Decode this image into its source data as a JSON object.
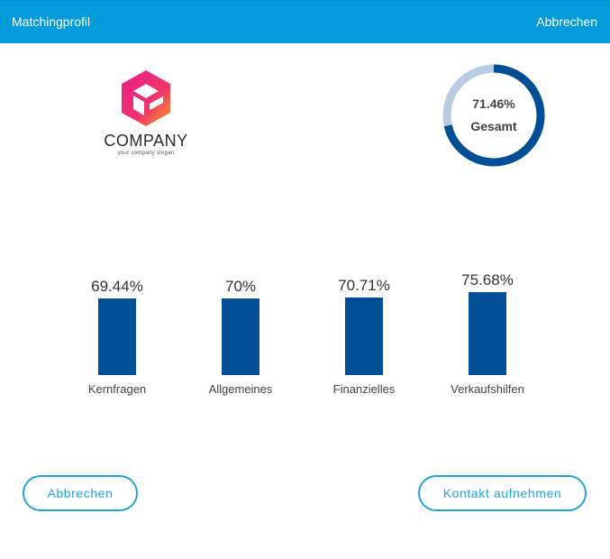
{
  "header": {
    "title": "Matchingprofil",
    "cancel_label": "Abbrechen"
  },
  "logo": {
    "name": "COMPANY",
    "slogan": "your company slogan",
    "icon": "hexagon-cube-logo"
  },
  "overall": {
    "value": 71.46,
    "value_text": "71.46%",
    "label": "Gesamt",
    "colors": {
      "filled": "#004f96",
      "remainder": "#b9cce3"
    }
  },
  "chart_data": {
    "type": "bar",
    "categories": [
      "Kernfragen",
      "Allgemeines",
      "Finanzielles",
      "Verkaufshilfen"
    ],
    "values": [
      69.44,
      70,
      70.71,
      75.68
    ],
    "value_labels": [
      "69.44%",
      "70%",
      "70.71%",
      "75.68%"
    ],
    "ylim": [
      0,
      100
    ],
    "bar_color": "#004f96"
  },
  "buttons": {
    "cancel_label": "Abbrechen",
    "contact_label": "Kontakt aufnehmen"
  },
  "colors": {
    "header_bg": "#009bd8",
    "accent": "#24a3d9"
  }
}
